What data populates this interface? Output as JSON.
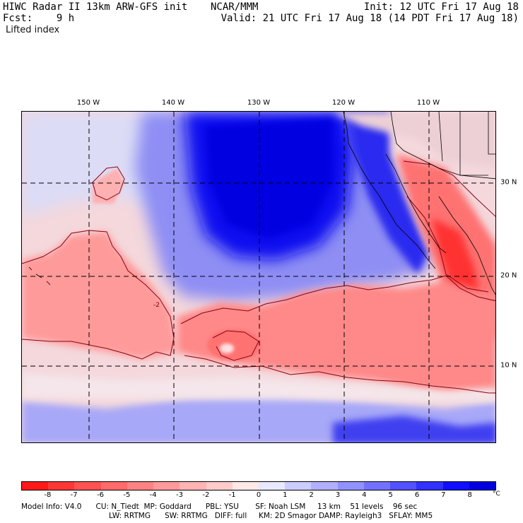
{
  "header": {
    "title_left": "HIWC Radar II 13km ARW-GFS init",
    "title_center": "NCAR/MMM",
    "init": "Init: 12 UTC Fri 17 Aug 18",
    "fcst": "Fcst:    9 h",
    "valid": "Valid: 21 UTC Fri 17 Aug 18 (14 PDT Fri 17 Aug 18)",
    "field": "Lifted index"
  },
  "map": {
    "lon_labels": [
      "150 W",
      "140 W",
      "130 W",
      "120 W",
      "110 W"
    ],
    "lat_labels": [
      "30 N",
      "20 N",
      "10 N"
    ],
    "grid_lon": [
      -150,
      -140,
      -130,
      -120,
      -110
    ],
    "grid_lat": [
      30,
      20,
      10
    ],
    "lon_range": [
      -158,
      -102
    ],
    "lat_range": [
      1,
      38
    ],
    "gridlines": "dashed",
    "field_extrema": {
      "min": -8,
      "max": 8
    },
    "contour_label": "-2"
  },
  "colorbar": {
    "ticks": [
      "-8",
      "-7",
      "-6",
      "-5",
      "-4",
      "-3",
      "-2",
      "-1",
      "0",
      "1",
      "2",
      "3",
      "4",
      "5",
      "6",
      "7",
      "8"
    ],
    "unit": "°C",
    "colors": [
      "#ff1a1a",
      "#ff3636",
      "#ff5252",
      "#ff6a6a",
      "#ff8282",
      "#ff9a9a",
      "#ffb4b4",
      "#ffcccc",
      "#ffe8e8",
      "#e8e8ff",
      "#ccccff",
      "#b0b0ff",
      "#9292ff",
      "#7272ff",
      "#5252ff",
      "#3232ff",
      "#1010ff",
      "#0000e0"
    ]
  },
  "model_info": {
    "line1": "Model Info: V4.0      CU: N_Tiedt  MP: Goddard      PBL: YSU       SF: Noah LSM     13 km    51 levels    96 sec",
    "line2": "LW: RRTMG      SW: RRTMG   DIFF: full     KM: 2D Smagor DAMP: Rayleigh3   SFLAY: MM5"
  }
}
